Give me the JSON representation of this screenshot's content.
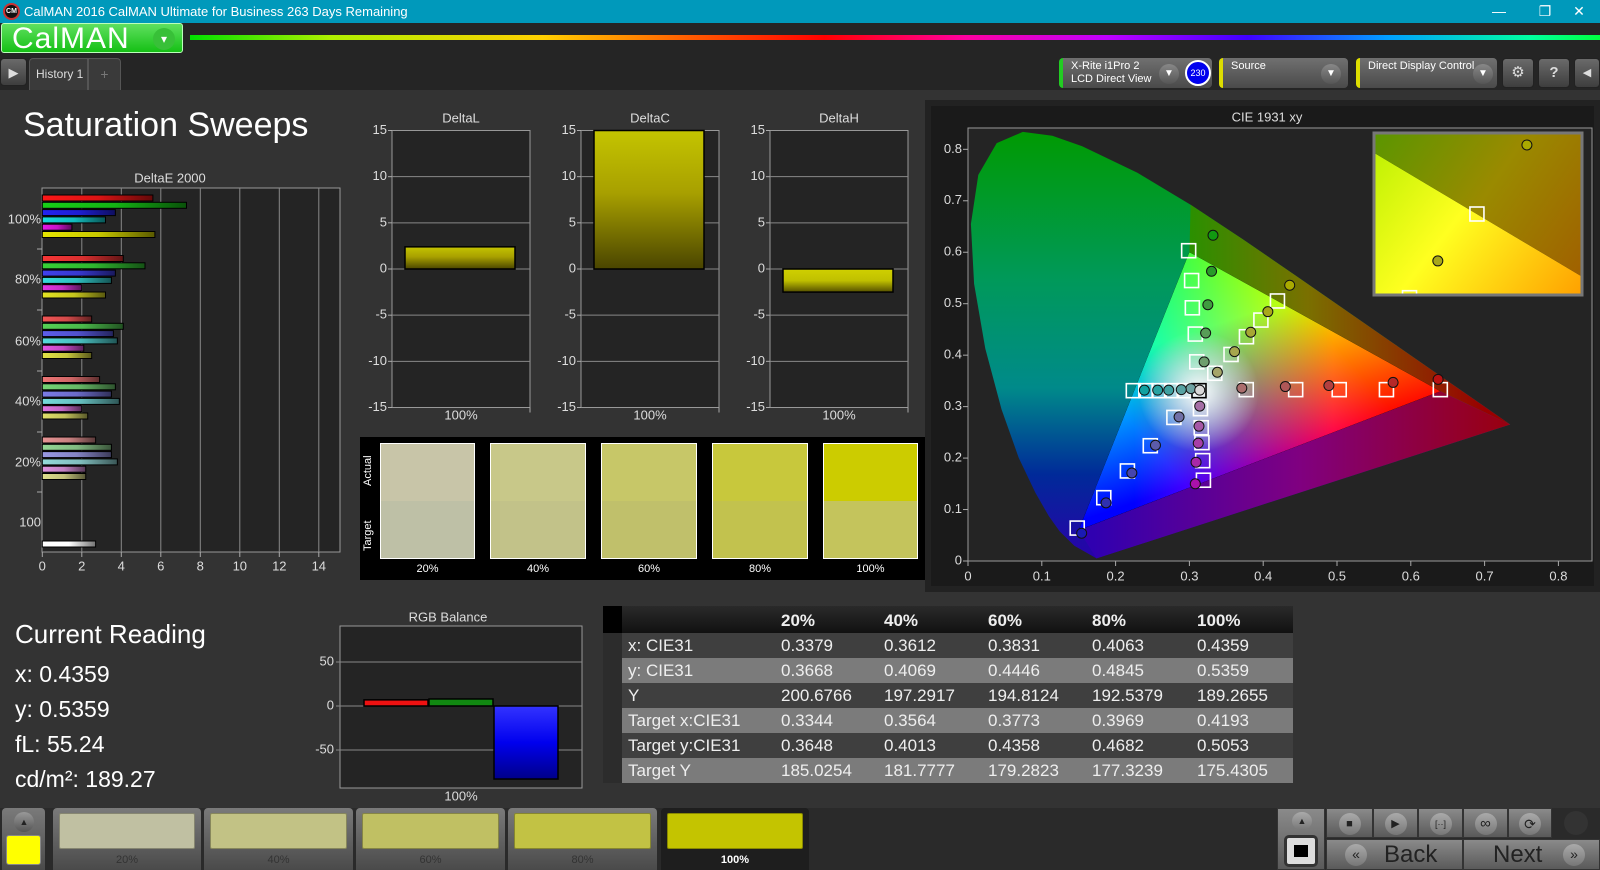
{
  "window": {
    "title": "CalMAN 2016 CalMAN Ultimate for Business 263 Days Remaining",
    "app_icon_text": "CM",
    "minimize": "—",
    "maximize": "❐",
    "close": "✕"
  },
  "logo": {
    "label": "CalMAN",
    "dropdown": "▾"
  },
  "tabs": {
    "play": "▶",
    "items": [
      {
        "label": "History 1"
      }
    ],
    "add": "+"
  },
  "toolbar": {
    "meter": {
      "line1": "X-Rite i1Pro 2",
      "line2": "LCD Direct View",
      "badge": "230",
      "accent": "#22cc22"
    },
    "source": {
      "label": "Source",
      "accent": "#dddd00"
    },
    "display": {
      "label": "Direct Display Control",
      "accent": "#dddd00"
    },
    "settings_icon": "⚙",
    "help_icon": "?",
    "collapse_icon": "◀"
  },
  "page_title": "Saturation Sweeps",
  "swatches": {
    "actual_label": "Actual",
    "target_label": "Target",
    "items": [
      {
        "label": "20%",
        "actual": "#c8c5a8",
        "target": "#bec0a6"
      },
      {
        "label": "40%",
        "actual": "#c8c889",
        "target": "#c2c289"
      },
      {
        "label": "60%",
        "actual": "#c7c768",
        "target": "#c0c06b"
      },
      {
        "label": "80%",
        "actual": "#c8c83c",
        "target": "#c2c24e"
      },
      {
        "label": "100%",
        "actual": "#cccc00",
        "target": "#c4c45c"
      }
    ]
  },
  "current_reading": {
    "title": "Current Reading",
    "x": "x: 0.4359",
    "y": "y: 0.5359",
    "fl": "fL: 55.24",
    "cdm2": "cd/m²: 189.27"
  },
  "table": {
    "header": [
      "",
      "20%",
      "40%",
      "60%",
      "80%",
      "100%"
    ],
    "rows": [
      [
        "x: CIE31",
        "0.3379",
        "0.3612",
        "0.3831",
        "0.4063",
        "0.4359"
      ],
      [
        "y: CIE31",
        "0.3668",
        "0.4069",
        "0.4446",
        "0.4845",
        "0.5359"
      ],
      [
        "Y",
        "200.6766",
        "197.2917",
        "194.8124",
        "192.5379",
        "189.2655"
      ],
      [
        "Target x:CIE31",
        "0.3344",
        "0.3564",
        "0.3773",
        "0.3969",
        "0.4193"
      ],
      [
        "Target y:CIE31",
        "0.3648",
        "0.4013",
        "0.4358",
        "0.4682",
        "0.5053"
      ],
      [
        "Target Y",
        "185.0254",
        "181.7777",
        "179.2823",
        "177.3239",
        "175.4305"
      ]
    ]
  },
  "bottom": {
    "current_color": "#ffff00",
    "up_icon": "▲",
    "patches": [
      {
        "label": "20%",
        "color": "#c0c0a2"
      },
      {
        "label": "40%",
        "color": "#c2c285"
      },
      {
        "label": "60%",
        "color": "#c0c063"
      },
      {
        "label": "80%",
        "color": "#c2c244"
      },
      {
        "label": "100%",
        "color": "#c4c400",
        "selected": true
      }
    ],
    "controls": {
      "stop": "■",
      "play": "▶",
      "range": "[··]",
      "loop": "∞",
      "refresh": "⟳"
    },
    "back": "Back",
    "next": "Next",
    "back_icon": "«",
    "next_icon": "»"
  },
  "chart_data": [
    {
      "id": "deltae",
      "type": "bar",
      "orientation": "horizontal",
      "title": "DeltaE 2000",
      "xlim": [
        0,
        15
      ],
      "xticks": [
        0,
        2,
        4,
        6,
        8,
        10,
        12,
        14
      ],
      "grid": true,
      "groups": [
        {
          "label": "100%",
          "level": 1.0,
          "bars": [
            {
              "color": "red",
              "value": 5.6
            },
            {
              "color": "green",
              "value": 7.3
            },
            {
              "color": "blue",
              "value": 3.7
            },
            {
              "color": "cyan",
              "value": 3.2
            },
            {
              "color": "magenta",
              "value": 1.5
            },
            {
              "color": "yellow",
              "value": 5.7
            }
          ]
        },
        {
          "label": "80%",
          "level": 0.8,
          "bars": [
            {
              "color": "red",
              "value": 4.1
            },
            {
              "color": "green",
              "value": 5.2
            },
            {
              "color": "blue",
              "value": 3.7
            },
            {
              "color": "cyan",
              "value": 3.5
            },
            {
              "color": "magenta",
              "value": 2.0
            },
            {
              "color": "yellow",
              "value": 3.2
            }
          ]
        },
        {
          "label": "60%",
          "level": 0.6,
          "bars": [
            {
              "color": "red",
              "value": 2.5
            },
            {
              "color": "green",
              "value": 4.1
            },
            {
              "color": "blue",
              "value": 3.6
            },
            {
              "color": "cyan",
              "value": 3.8
            },
            {
              "color": "magenta",
              "value": 2.1
            },
            {
              "color": "yellow",
              "value": 2.5
            }
          ]
        },
        {
          "label": "40%",
          "level": 0.4,
          "bars": [
            {
              "color": "red",
              "value": 2.9
            },
            {
              "color": "green",
              "value": 3.7
            },
            {
              "color": "blue",
              "value": 3.5
            },
            {
              "color": "cyan",
              "value": 3.9
            },
            {
              "color": "magenta",
              "value": 2.0
            },
            {
              "color": "yellow",
              "value": 2.3
            }
          ]
        },
        {
          "label": "20%",
          "level": 0.2,
          "bars": [
            {
              "color": "red",
              "value": 2.7
            },
            {
              "color": "green",
              "value": 3.5
            },
            {
              "color": "blue",
              "value": 3.5
            },
            {
              "color": "cyan",
              "value": 3.8
            },
            {
              "color": "magenta",
              "value": 2.2
            },
            {
              "color": "yellow",
              "value": 2.2
            }
          ]
        },
        {
          "label": "100",
          "level": 0,
          "bars": [
            {
              "color": "white",
              "value": 2.7
            }
          ]
        }
      ]
    },
    {
      "id": "deltal",
      "type": "bar",
      "title": "DeltaL",
      "categories": [
        "100%"
      ],
      "values": [
        2.4
      ],
      "ylim": [
        -15,
        15
      ],
      "yticks": [
        15,
        10,
        5,
        0,
        -5,
        -10,
        -15
      ]
    },
    {
      "id": "deltac",
      "type": "bar",
      "title": "DeltaC",
      "categories": [
        "100%"
      ],
      "values": [
        15
      ],
      "ylim": [
        -15,
        15
      ],
      "yticks": [
        15,
        10,
        5,
        0,
        -5,
        -10,
        -15
      ]
    },
    {
      "id": "deltah",
      "type": "bar",
      "title": "DeltaH",
      "categories": [
        "100%"
      ],
      "values": [
        -2.5
      ],
      "ylim": [
        -15,
        15
      ],
      "yticks": [
        15,
        10,
        5,
        0,
        -5,
        -10,
        -15
      ]
    },
    {
      "id": "rgb",
      "type": "bar",
      "title": "RGB Balance",
      "categories": [
        "100%"
      ],
      "series": [
        {
          "color": "#ee1111",
          "value": 7
        },
        {
          "color": "#118811",
          "value": 8
        },
        {
          "color": "#1111ee",
          "value": -83
        }
      ],
      "yticks": [
        50,
        0,
        -50
      ]
    },
    {
      "id": "cie",
      "type": "scatter",
      "title": "CIE 1931 xy",
      "xticks": [
        0,
        0.1,
        0.2,
        0.3,
        0.4,
        0.5,
        0.6,
        0.7,
        0.8
      ],
      "yticks": [
        0,
        0.1,
        0.2,
        0.3,
        0.4,
        0.5,
        0.6,
        0.7,
        0.8
      ],
      "gamut": {
        "red": [
          0.64,
          0.33
        ],
        "green": [
          0.3,
          0.6
        ],
        "blue": [
          0.15,
          0.06
        ],
        "white": [
          0.3127,
          0.329
        ]
      },
      "levels": [
        "20%",
        "40%",
        "60%",
        "80%",
        "100%"
      ],
      "targets": {
        "red": [
          [
            0.377,
            0.333
          ],
          [
            0.444,
            0.333
          ],
          [
            0.503,
            0.333
          ],
          [
            0.567,
            0.333
          ],
          [
            0.64,
            0.333
          ]
        ],
        "green": [
          [
            0.31,
            0.387
          ],
          [
            0.308,
            0.441
          ],
          [
            0.304,
            0.492
          ],
          [
            0.303,
            0.545
          ],
          [
            0.299,
            0.603
          ]
        ],
        "blue": [
          [
            0.279,
            0.279
          ],
          [
            0.247,
            0.224
          ],
          [
            0.216,
            0.175
          ],
          [
            0.184,
            0.123
          ],
          [
            0.148,
            0.064
          ]
        ],
        "cyan": [
          [
            0.293,
            0.331
          ],
          [
            0.276,
            0.331
          ],
          [
            0.259,
            0.331
          ],
          [
            0.241,
            0.331
          ],
          [
            0.224,
            0.331
          ]
        ],
        "magenta": [
          [
            0.315,
            0.296
          ],
          [
            0.316,
            0.259
          ],
          [
            0.317,
            0.23
          ],
          [
            0.318,
            0.195
          ],
          [
            0.319,
            0.157
          ]
        ],
        "yellow": [
          [
            0.3344,
            0.3648
          ],
          [
            0.3564,
            0.4013
          ],
          [
            0.3773,
            0.4358
          ],
          [
            0.3969,
            0.4682
          ],
          [
            0.4193,
            0.5053
          ]
        ],
        "white": [
          [
            0.313,
            0.331
          ]
        ]
      },
      "measured": {
        "red": [
          [
            0.371,
            0.336
          ],
          [
            0.43,
            0.339
          ],
          [
            0.489,
            0.341
          ],
          [
            0.576,
            0.347
          ],
          [
            0.637,
            0.353
          ]
        ],
        "green": [
          [
            0.32,
            0.387
          ],
          [
            0.322,
            0.443
          ],
          [
            0.325,
            0.498
          ],
          [
            0.33,
            0.563
          ],
          [
            0.332,
            0.633
          ]
        ],
        "blue": [
          [
            0.286,
            0.28
          ],
          [
            0.254,
            0.225
          ],
          [
            0.222,
            0.171
          ],
          [
            0.187,
            0.113
          ],
          [
            0.154,
            0.054
          ]
        ],
        "cyan": [
          [
            0.302,
            0.335
          ],
          [
            0.289,
            0.333
          ],
          [
            0.272,
            0.332
          ],
          [
            0.257,
            0.332
          ],
          [
            0.239,
            0.332
          ]
        ],
        "magenta": [
          [
            0.314,
            0.301
          ],
          [
            0.313,
            0.262
          ],
          [
            0.312,
            0.229
          ],
          [
            0.309,
            0.192
          ],
          [
            0.308,
            0.15
          ]
        ],
        "yellow": [
          [
            0.3379,
            0.3668
          ],
          [
            0.3612,
            0.4069
          ],
          [
            0.3831,
            0.4446
          ],
          [
            0.4063,
            0.4845
          ],
          [
            0.4359,
            0.5359
          ]
        ],
        "white": [
          [
            0.314,
            0.332
          ]
        ]
      },
      "inset": {
        "series": "yellow",
        "xlim": [
          0.3851,
          0.4542
        ],
        "ylim": [
          0.4694,
          0.5412
        ]
      }
    }
  ]
}
